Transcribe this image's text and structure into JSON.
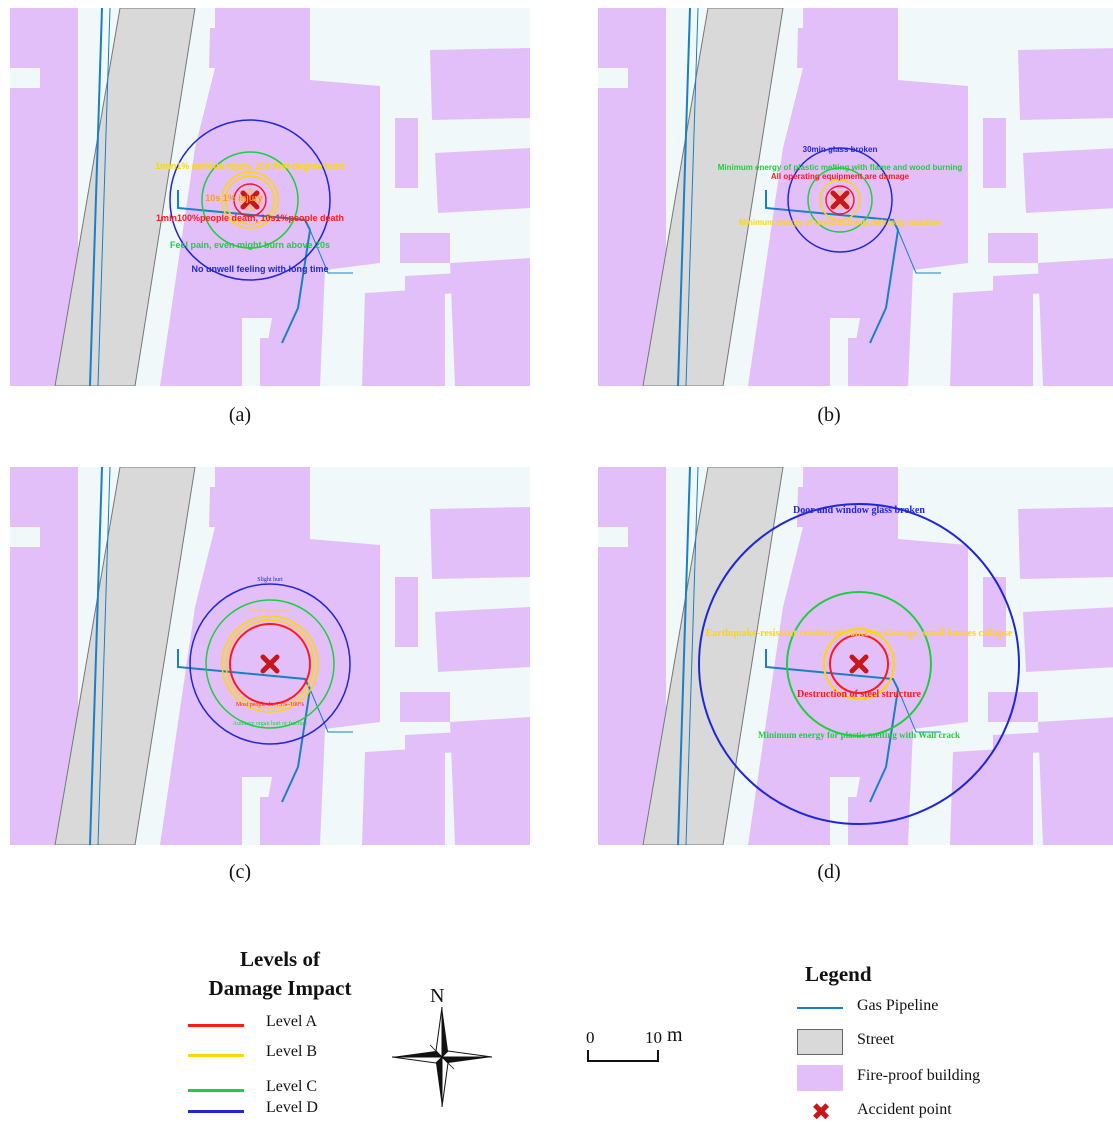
{
  "colors": {
    "building": "#e3bffa",
    "street": "#d9d9d9",
    "background": "#f0f8fa",
    "pipeline": "#1a7fc4",
    "level_a": "#ff1a1a",
    "level_b": "#ffd700",
    "level_c": "#1dcf3c",
    "level_d": "#1f28d6",
    "accident": "#c8161d"
  },
  "panels": {
    "a": {
      "caption": "(a)",
      "labels": {
        "l1": "1min1% serious injury, 10s first-degree burn",
        "l2": "10s 1% injury",
        "l3": "1min100%people death, 10s1%people death",
        "l4": "Feel pain, even might burn above 20s",
        "l5": "No unwell feeling with long time"
      }
    },
    "b": {
      "caption": "(b)",
      "labels": {
        "l1": "30min glass broken",
        "l2": "Minimum energy of plastic melting with flame and wood burning",
        "l3": "All operating equipment are damage",
        "l4": "Minimum energy of wood burning with long radiation"
      }
    },
    "c": {
      "caption": "(c)",
      "labels": {
        "l1": "Slight hurt",
        "l2": "Eardrum rupture",
        "l3": "Most people die 75%–100%",
        "l4": "Auditory organ hurt or fracture"
      }
    },
    "d": {
      "caption": "(d)",
      "labels": {
        "l1": "Door and window glass broken",
        "l2": "Earthquake-resistant reinforced concrete damage, small houses collapse",
        "l3": "Destruction of steel structure",
        "l4": "Minimum energy for plastic melting with Wall crack"
      }
    }
  },
  "levels_legend": {
    "title_line1": "Levels of",
    "title_line2": "Damage Impact",
    "items": [
      {
        "label": "Level A",
        "color": "#ff1a1a"
      },
      {
        "label": "Level B",
        "color": "#ffd700"
      },
      {
        "label": "Level C",
        "color": "#1dcf3c"
      },
      {
        "label": "Level D",
        "color": "#1f28d6"
      }
    ]
  },
  "north_arrow": {
    "label": "N"
  },
  "scale_bar": {
    "start": "0",
    "end": "10",
    "unit": "m"
  },
  "legend": {
    "title": "Legend",
    "items": [
      {
        "label": "Gas Pipeline"
      },
      {
        "label": "Street"
      },
      {
        "label": "Fire-proof building"
      },
      {
        "label": "Accident point"
      }
    ]
  }
}
